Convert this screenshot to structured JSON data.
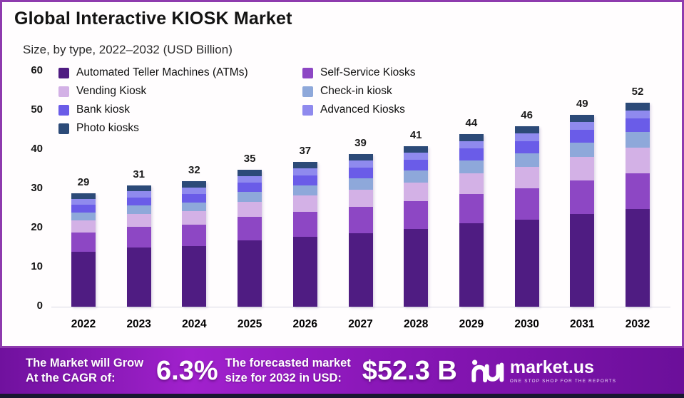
{
  "page": {
    "border_color": "#8e3bae",
    "background": "#ffffff",
    "footer_strip_color": "#191730"
  },
  "header": {
    "title": "Global Interactive KIOSK Market",
    "subtitle": "Size, by type, 2022–2032 (USD Billion)"
  },
  "chart_data": {
    "type": "bar",
    "subtype": "stacked-vertical",
    "title": "Global Interactive KIOSK Market",
    "subtitle": "Size, by type, 2022–2032 (USD Billion)",
    "unit": "USD Billion",
    "categories": [
      "2022",
      "2023",
      "2024",
      "2025",
      "2026",
      "2027",
      "2028",
      "2029",
      "2030",
      "2031",
      "2032"
    ],
    "totals": [
      29,
      31,
      32,
      35,
      37,
      39,
      41,
      44,
      46,
      49,
      52
    ],
    "ylim": [
      0,
      60
    ],
    "yticks": [
      0,
      10,
      20,
      30,
      40,
      50,
      60
    ],
    "grid": "baseline-only",
    "legend_position": "top-inside-two-columns",
    "series": [
      {
        "name": "Automated Teller Machines (ATMs)",
        "color": "#4f1c82",
        "values": [
          14.0,
          15.0,
          15.4,
          16.9,
          17.8,
          18.8,
          19.8,
          21.2,
          22.1,
          23.6,
          25.0
        ]
      },
      {
        "name": "Self-Service Kiosks",
        "color": "#8d47c4",
        "values": [
          5.0,
          5.3,
          5.5,
          6.0,
          6.4,
          6.7,
          7.1,
          7.6,
          8.0,
          8.5,
          9.0
        ]
      },
      {
        "name": "Vending Kiosk",
        "color": "#d3b1e6",
        "values": [
          3.0,
          3.3,
          3.4,
          3.8,
          4.1,
          4.4,
          4.8,
          5.2,
          5.5,
          6.0,
          6.5
        ]
      },
      {
        "name": "Check-in kiosk",
        "color": "#8ea8da",
        "values": [
          2.0,
          2.2,
          2.3,
          2.5,
          2.7,
          2.9,
          3.0,
          3.3,
          3.5,
          3.7,
          4.0
        ]
      },
      {
        "name": "Bank kiosk",
        "color": "#6a5ce8",
        "values": [
          2.0,
          2.1,
          2.2,
          2.4,
          2.5,
          2.7,
          2.8,
          3.0,
          3.1,
          3.3,
          3.5
        ]
      },
      {
        "name": "Advanced Kiosks",
        "color": "#8f8aee",
        "values": [
          1.5,
          1.6,
          1.6,
          1.7,
          1.75,
          1.75,
          1.75,
          1.85,
          1.9,
          1.95,
          2.0
        ]
      },
      {
        "name": "Photo kiosks",
        "color": "#2c4a78",
        "values": [
          1.5,
          1.5,
          1.6,
          1.7,
          1.75,
          1.75,
          1.75,
          1.85,
          1.9,
          1.95,
          2.0
        ]
      }
    ]
  },
  "footer": {
    "growth_label_line1": "The Market will Grow",
    "growth_label_line2": "At the CAGR of:",
    "cagr_value": "6.3%",
    "forecast_label_line1": "The forecasted market",
    "forecast_label_line2": "size for 2032 in USD:",
    "forecast_value": "$52.3 B",
    "brand_name": "market.us",
    "brand_tagline": "ONE STOP SHOP FOR THE REPORTS",
    "gradient_start": "#70119e",
    "gradient_mid": "#a121cd",
    "gradient_end": "#6b0f9a"
  }
}
